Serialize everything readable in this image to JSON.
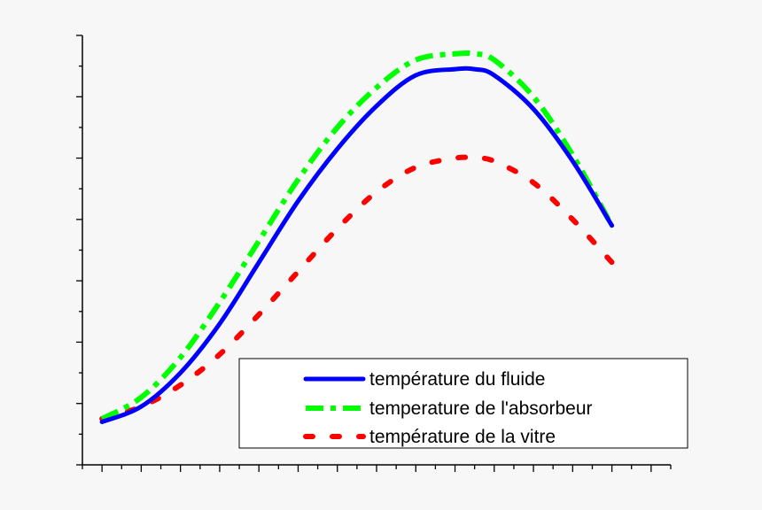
{
  "chart_data": {
    "type": "line",
    "title": "",
    "xlabel": "",
    "ylabel": "",
    "x_tick_labels": false,
    "y_tick_labels": false,
    "xlim": [
      -1,
      29
    ],
    "ylim": [
      0,
      14
    ],
    "grid": false,
    "legend_position": "bottom-right",
    "x": [
      0,
      2,
      4,
      6,
      8,
      10,
      12,
      14,
      16,
      18,
      19,
      20,
      22,
      24,
      26
    ],
    "series": [
      {
        "name": "température du fluide",
        "color": "#0000ff",
        "line_style": "solid",
        "values": [
          1.4,
          1.9,
          3.0,
          4.6,
          6.6,
          8.6,
          10.3,
          11.7,
          12.7,
          12.9,
          12.9,
          12.7,
          11.6,
          9.9,
          7.8
        ]
      },
      {
        "name": "temperature de l'absorbeur",
        "color": "#00ff00",
        "line_style": "dash-dot",
        "values": [
          1.5,
          2.2,
          3.5,
          5.3,
          7.3,
          9.3,
          11.0,
          12.3,
          13.2,
          13.4,
          13.4,
          13.2,
          12.0,
          10.1,
          7.8
        ]
      },
      {
        "name": "température de la vitre",
        "color": "#ff0000",
        "line_style": "dotted",
        "values": [
          1.5,
          1.9,
          2.6,
          3.6,
          4.9,
          6.3,
          7.7,
          8.9,
          9.7,
          10.0,
          10.0,
          9.9,
          9.2,
          8.0,
          6.6
        ]
      }
    ]
  }
}
